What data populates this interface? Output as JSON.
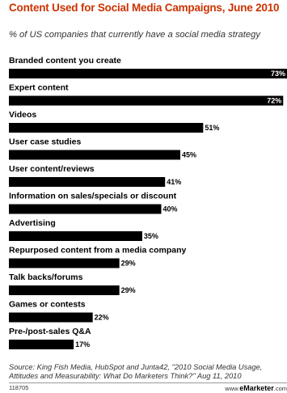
{
  "chart_data": {
    "type": "bar",
    "orientation": "horizontal",
    "title": "Content Used for Social Media Campaigns, June 2010",
    "subtitle": "% of US companies that currently have a social media strategy",
    "categories": [
      "Branded content you create",
      "Expert content",
      "Videos",
      "User case studies",
      "User content/reviews",
      "Information on sales/specials or discount",
      "Advertising",
      "Repurposed content from a media company",
      "Talk backs/forums",
      "Games or contests",
      "Pre-/post-sales Q&A"
    ],
    "values": [
      73,
      72,
      51,
      45,
      41,
      40,
      35,
      29,
      29,
      22,
      17
    ],
    "value_labels": [
      "73%",
      "72%",
      "51%",
      "45%",
      "41%",
      "40%",
      "35%",
      "29%",
      "29%",
      "22%",
      "17%"
    ],
    "bar_color": "#000000"
  },
  "source": {
    "line1": "Source: King Fish Media, HubSpot and Junta42, \"2010 Social Media Usage,",
    "line2": "Attitudes and Measurability: What Do Marketers Think?\" Aug 11, 2010"
  },
  "footer": {
    "id": "118705",
    "site_prefix": "www.",
    "site_brand": "eMarketer",
    "site_suffix": ".com"
  },
  "colors": {
    "title": "#cc3300",
    "bar": "#000000",
    "text": "#333333"
  }
}
